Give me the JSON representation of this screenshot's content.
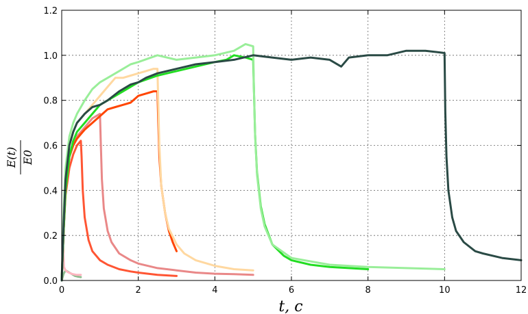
{
  "chart_data": {
    "type": "line",
    "title": "",
    "xlabel": "t, c",
    "ylabel_num": "E(t)",
    "ylabel_den": "E0",
    "xlim": [
      0,
      12
    ],
    "ylim": [
      0,
      1.2
    ],
    "xticks": [
      0,
      2,
      4,
      6,
      8,
      10,
      12
    ],
    "yticks": [
      0.0,
      0.2,
      0.4,
      0.6,
      0.8,
      1.0,
      1.2
    ],
    "xtick_labels": [
      "0",
      "2",
      "4",
      "6",
      "8",
      "10",
      "12"
    ],
    "ytick_labels": [
      "0.0",
      "0.2",
      "0.4",
      "0.6",
      "0.8",
      "1.0",
      "1.2"
    ],
    "grid": true,
    "series": [
      {
        "color": "#8fbc8f",
        "x": [
          0.0,
          0.05,
          0.1,
          0.15,
          0.2,
          0.25,
          0.3,
          0.35,
          0.4,
          0.45,
          0.5
        ],
        "y": [
          0.0,
          0.03,
          0.045,
          0.04,
          0.035,
          0.03,
          0.025,
          0.02,
          0.018,
          0.016,
          0.015
        ]
      },
      {
        "color": "#ffb6c1",
        "x": [
          0.0,
          0.03,
          0.06,
          0.1,
          0.15,
          0.2,
          0.25,
          0.3,
          0.35,
          0.4,
          0.5
        ],
        "y": [
          0.0,
          0.18,
          0.06,
          0.045,
          0.038,
          0.034,
          0.03,
          0.028,
          0.026,
          0.025,
          0.025
        ]
      },
      {
        "color": "#ff5533",
        "x": [
          0.0,
          0.05,
          0.1,
          0.2,
          0.3,
          0.4,
          0.5,
          0.52,
          0.55,
          0.6,
          0.7,
          0.8,
          1.0,
          1.2,
          1.5,
          1.8,
          2.0,
          2.5,
          3.0
        ],
        "y": [
          0.0,
          0.22,
          0.38,
          0.5,
          0.56,
          0.6,
          0.62,
          0.55,
          0.4,
          0.28,
          0.18,
          0.13,
          0.09,
          0.07,
          0.05,
          0.04,
          0.035,
          0.025,
          0.02
        ]
      },
      {
        "color": "#e98888",
        "x": [
          0.0,
          0.05,
          0.1,
          0.2,
          0.3,
          0.4,
          0.5,
          0.6,
          0.7,
          0.8,
          0.9,
          1.0,
          1.02,
          1.05,
          1.1,
          1.2,
          1.3,
          1.5,
          1.8,
          2.0,
          2.5,
          3.0,
          3.5,
          4.0,
          4.5,
          5.0
        ],
        "y": [
          0.0,
          0.22,
          0.4,
          0.55,
          0.6,
          0.64,
          0.66,
          0.68,
          0.7,
          0.72,
          0.73,
          0.74,
          0.62,
          0.45,
          0.32,
          0.22,
          0.17,
          0.12,
          0.09,
          0.075,
          0.055,
          0.045,
          0.035,
          0.03,
          0.028,
          0.025
        ]
      },
      {
        "color": "#ff4500",
        "x": [
          0.0,
          0.05,
          0.1,
          0.2,
          0.3,
          0.4,
          0.5,
          0.6,
          0.8,
          1.0,
          1.2,
          1.4,
          1.6,
          1.8,
          2.0,
          2.2,
          2.4,
          2.5,
          2.52,
          2.55,
          2.6,
          2.7,
          2.8,
          2.9,
          3.0
        ],
        "y": [
          0.0,
          0.22,
          0.4,
          0.55,
          0.6,
          0.63,
          0.65,
          0.67,
          0.7,
          0.73,
          0.76,
          0.77,
          0.78,
          0.79,
          0.82,
          0.83,
          0.84,
          0.84,
          0.72,
          0.55,
          0.42,
          0.3,
          0.22,
          0.17,
          0.13
        ]
      },
      {
        "color": "#ffd8a0",
        "x": [
          0.0,
          0.05,
          0.1,
          0.2,
          0.3,
          0.4,
          0.6,
          0.8,
          1.0,
          1.2,
          1.4,
          1.6,
          1.8,
          2.0,
          2.2,
          2.4,
          2.5,
          2.52,
          2.55,
          2.6,
          2.7,
          2.8,
          3.0,
          3.2,
          3.5,
          4.0,
          4.5,
          5.0
        ],
        "y": [
          0.0,
          0.25,
          0.45,
          0.6,
          0.66,
          0.7,
          0.74,
          0.78,
          0.82,
          0.86,
          0.9,
          0.9,
          0.91,
          0.92,
          0.93,
          0.94,
          0.94,
          0.8,
          0.6,
          0.42,
          0.3,
          0.23,
          0.16,
          0.12,
          0.09,
          0.065,
          0.05,
          0.045
        ]
      },
      {
        "color": "#22dd22",
        "x": [
          0.0,
          0.05,
          0.1,
          0.2,
          0.3,
          0.4,
          0.6,
          0.8,
          1.0,
          1.2,
          1.5,
          1.8,
          2.0,
          2.5,
          3.0,
          3.5,
          4.0,
          4.3,
          4.5,
          4.8,
          5.0,
          5.02,
          5.05,
          5.1,
          5.2,
          5.3,
          5.5,
          5.8,
          6.0,
          6.5,
          7.0,
          7.5,
          8.0
        ],
        "y": [
          0.0,
          0.22,
          0.4,
          0.55,
          0.62,
          0.66,
          0.7,
          0.74,
          0.78,
          0.8,
          0.83,
          0.86,
          0.88,
          0.91,
          0.93,
          0.95,
          0.97,
          0.98,
          1.0,
          0.99,
          0.98,
          0.85,
          0.65,
          0.48,
          0.33,
          0.25,
          0.16,
          0.11,
          0.09,
          0.07,
          0.06,
          0.055,
          0.05
        ]
      },
      {
        "color": "#99ee99",
        "x": [
          0.0,
          0.05,
          0.1,
          0.2,
          0.3,
          0.4,
          0.6,
          0.8,
          1.0,
          1.2,
          1.5,
          1.8,
          2.0,
          2.5,
          3.0,
          3.5,
          4.0,
          4.5,
          4.8,
          5.0,
          5.02,
          5.05,
          5.1,
          5.2,
          5.3,
          5.5,
          6.0,
          7.0,
          8.0,
          9.0,
          10.0
        ],
        "y": [
          0.0,
          0.3,
          0.5,
          0.64,
          0.7,
          0.74,
          0.8,
          0.85,
          0.88,
          0.9,
          0.93,
          0.96,
          0.97,
          1.0,
          0.98,
          0.99,
          1.0,
          1.02,
          1.05,
          1.04,
          0.85,
          0.65,
          0.47,
          0.32,
          0.24,
          0.16,
          0.1,
          0.07,
          0.06,
          0.055,
          0.05
        ]
      },
      {
        "color": "#2a4a45",
        "x": [
          0.0,
          0.05,
          0.1,
          0.2,
          0.3,
          0.4,
          0.6,
          0.8,
          1.0,
          1.2,
          1.5,
          1.8,
          2.0,
          2.2,
          2.5,
          3.0,
          3.5,
          4.0,
          4.5,
          5.0,
          5.5,
          6.0,
          6.5,
          7.0,
          7.3,
          7.5,
          8.0,
          8.5,
          9.0,
          9.5,
          10.0,
          10.02,
          10.05,
          10.1,
          10.2,
          10.3,
          10.5,
          10.8,
          11.0,
          11.5,
          12.0
        ],
        "y": [
          0.0,
          0.25,
          0.45,
          0.6,
          0.66,
          0.7,
          0.74,
          0.77,
          0.78,
          0.8,
          0.84,
          0.87,
          0.88,
          0.9,
          0.92,
          0.94,
          0.96,
          0.97,
          0.98,
          1.0,
          0.99,
          0.98,
          0.99,
          0.98,
          0.95,
          0.99,
          1.0,
          1.0,
          1.02,
          1.02,
          1.01,
          0.75,
          0.55,
          0.4,
          0.28,
          0.22,
          0.17,
          0.13,
          0.12,
          0.1,
          0.09
        ]
      }
    ]
  }
}
